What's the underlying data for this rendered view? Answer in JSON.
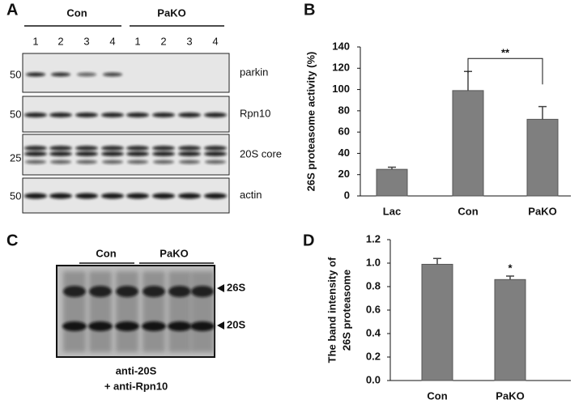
{
  "blot_a": {
    "panel": "A",
    "groups": [
      "Con",
      "PaKO"
    ],
    "lanes": [
      "1",
      "2",
      "3",
      "4",
      "1",
      "2",
      "3",
      "4"
    ],
    "rows": [
      {
        "marker": "50",
        "label": "parkin"
      },
      {
        "marker": "50",
        "label": "Rpn10"
      },
      {
        "marker": "25",
        "label": "20S core"
      },
      {
        "marker": "50",
        "label": "actin"
      }
    ]
  },
  "blot_c": {
    "panel": "C",
    "groups": [
      "Con",
      "PaKO"
    ],
    "bands": [
      "26S",
      "20S"
    ],
    "caption": [
      "anti-20S",
      "+ anti-Rpn10"
    ]
  },
  "chart_data": [
    {
      "type": "bar",
      "panel": "B",
      "ylabel": [
        "26S proteasome activity (%)"
      ],
      "categories": [
        "Lac",
        "Con",
        "PaKO"
      ],
      "values": [
        25,
        99,
        72
      ],
      "errors": [
        2,
        18,
        12
      ],
      "color": "#7f7f7f",
      "ylim": [
        0,
        140
      ],
      "yticks": [
        0,
        20,
        40,
        60,
        80,
        100,
        120,
        140
      ],
      "annotations": [
        "**"
      ]
    },
    {
      "type": "bar",
      "panel": "D",
      "ylabel": [
        "The band intensity of",
        "26S proteasome"
      ],
      "categories": [
        "Con",
        "PaKO"
      ],
      "values": [
        0.99,
        0.86
      ],
      "errors": [
        0.05,
        0.03
      ],
      "color": "#7f7f7f",
      "ylim": [
        0,
        1.2
      ],
      "yticks": [
        {
          "value": 0,
          "label": "0.0"
        },
        0.2,
        0.4,
        0.6,
        0.8,
        {
          "value": 1,
          "label": "1.0"
        },
        1.2
      ],
      "annotations": [
        "*"
      ]
    }
  ]
}
